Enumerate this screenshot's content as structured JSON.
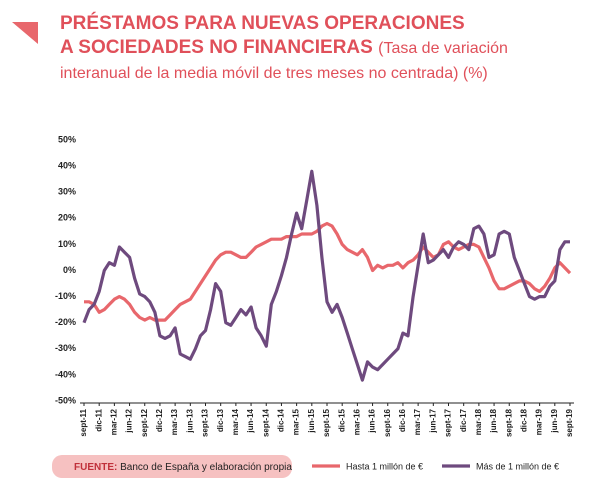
{
  "chart_data": {
    "type": "line",
    "title": [
      "PRÉSTAMOS PARA NUEVAS OPERACIONES",
      "A SOCIEDADES NO FINANCIERAS"
    ],
    "subtitle": "(Tasa de variación interanual de la media móvil de tres meses no centrada) (%)",
    "source": {
      "label": "FUENTE:",
      "text": "Banco de España  y elaboración propia"
    },
    "categories": [
      "sept-11",
      null,
      null,
      "dic-11",
      null,
      null,
      "mar-12",
      null,
      null,
      "jun-12",
      null,
      null,
      "sept-12",
      null,
      null,
      "dic-12",
      null,
      null,
      "mar-13",
      null,
      null,
      "jun-13",
      null,
      null,
      "sept-13",
      null,
      null,
      "dic-13",
      null,
      null,
      "mar-14",
      null,
      null,
      "jun-14",
      null,
      null,
      "sept-14",
      null,
      null,
      "dic-14",
      null,
      null,
      "mar-15",
      null,
      null,
      "jun-15",
      null,
      null,
      "sept-15",
      null,
      null,
      "dic-15",
      null,
      null,
      "mar-16",
      null,
      null,
      "jun-16",
      null,
      null,
      "sept-16",
      null,
      null,
      "dic-16",
      null,
      null,
      "mar-17",
      null,
      null,
      "jun-17",
      null,
      null,
      "sept-17",
      null,
      null,
      "dic-17",
      null,
      null,
      "mar-18",
      null,
      null,
      "jun-18",
      null,
      null,
      "sept-18",
      null,
      null,
      "dic-18",
      null,
      null,
      "mar-19",
      null,
      null,
      "jun-19",
      null,
      null,
      "sept-19"
    ],
    "series": [
      {
        "name": "Hasta 1 millón de €",
        "color": "#e8676c",
        "values": [
          -12,
          -12,
          -13,
          -16,
          -15,
          -13,
          -11,
          -10,
          -11,
          -13,
          -16,
          -18,
          -19,
          -18,
          -19,
          -19,
          -19,
          -17,
          -15,
          -13,
          -12,
          -11,
          -8,
          -5,
          -2,
          1,
          4,
          6,
          7,
          7,
          6,
          5,
          5,
          7,
          9,
          10,
          11,
          12,
          12,
          12,
          13,
          13,
          13,
          14,
          14,
          14,
          15,
          17,
          18,
          17,
          14,
          10,
          8,
          7,
          6,
          8,
          5,
          0,
          2,
          1,
          2,
          2,
          3,
          1,
          3,
          4,
          6,
          9,
          7,
          5,
          6,
          10,
          11,
          9,
          8,
          9,
          10,
          10,
          9,
          5,
          1,
          -4,
          -7,
          -7,
          -6,
          -5,
          -4,
          -4,
          -5,
          -7,
          -8,
          -6,
          -3,
          1,
          3,
          1,
          -1
        ]
      },
      {
        "name": "Más de 1 millón de €",
        "color": "#6e4a7e",
        "values": [
          -20,
          -15,
          -13,
          -8,
          0,
          3,
          2,
          9,
          7,
          5,
          -3,
          -9,
          -10,
          -12,
          -16,
          -25,
          -26,
          -25,
          -22,
          -32,
          -33,
          -34,
          -30,
          -25,
          -23,
          -15,
          -5,
          -8,
          -20,
          -21,
          -18,
          -15,
          -17,
          -14,
          -22,
          -25,
          -29,
          -13,
          -8,
          -2,
          5,
          14,
          22,
          16,
          27,
          38,
          25,
          5,
          -12,
          -16,
          -13,
          -18,
          -24,
          -30,
          -36,
          -42,
          -35,
          -37,
          -38,
          -36,
          -34,
          -32,
          -30,
          -24,
          -25,
          -10,
          2,
          14,
          3,
          4,
          6,
          8,
          5,
          9,
          11,
          10,
          8,
          16,
          17,
          14,
          5,
          6,
          14,
          15,
          14,
          5,
          0,
          -5,
          -10,
          -11,
          -10,
          -10,
          -6,
          -4,
          8,
          11,
          11
        ]
      }
    ],
    "ylim": [
      -50,
      50
    ],
    "yticks": [
      {
        "value": -50,
        "label": "-50%"
      },
      {
        "value": -40,
        "label": "-40%"
      },
      {
        "value": -30,
        "label": "-30%"
      },
      {
        "value": -20,
        "label": "-20%"
      },
      {
        "value": -10,
        "label": "-10%"
      },
      {
        "value": 0,
        "label": "0%"
      },
      {
        "value": 10,
        "label": "10%"
      },
      {
        "value": 20,
        "label": "20%"
      },
      {
        "value": 30,
        "label": "30%"
      },
      {
        "value": 40,
        "label": "40%"
      },
      {
        "value": 50,
        "label": "50%"
      }
    ],
    "grid": false
  }
}
